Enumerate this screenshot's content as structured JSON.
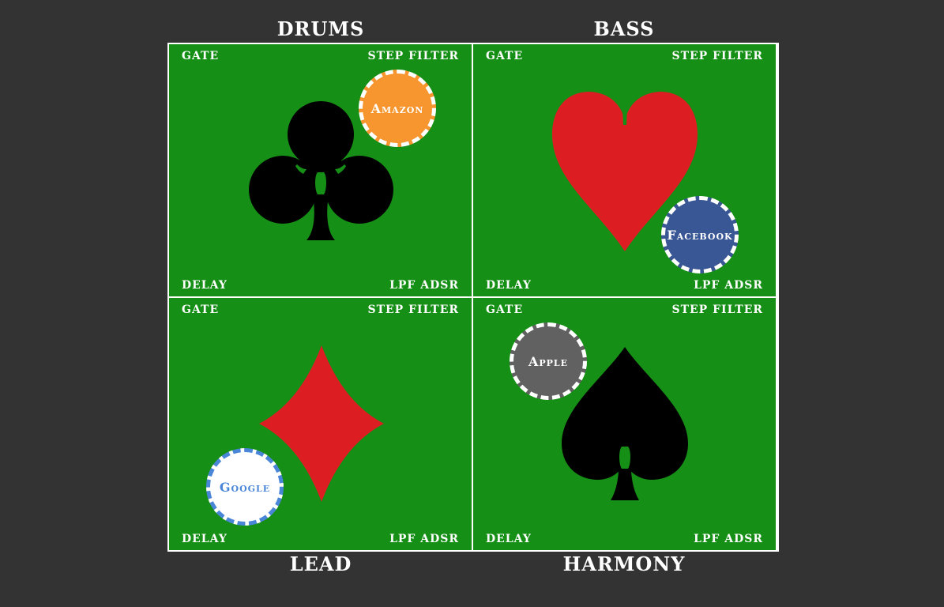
{
  "tracks": {
    "drums": "DRUMS",
    "bass": "BASS",
    "lead": "LEAD",
    "harmony": "HARMONY"
  },
  "quadrants": [
    {
      "track": "drums",
      "suit": "club-icon",
      "suit_color": "#000000",
      "chip": {
        "label": "Amazon",
        "color": "#f7962e"
      },
      "labels": {
        "top_left": "GATE",
        "top_right": "STEP FILTER",
        "bottom_left": "DELAY",
        "bottom_right": "LPF ADSR"
      }
    },
    {
      "track": "bass",
      "suit": "heart-icon",
      "suit_color": "#dc1e22",
      "chip": {
        "label": "Facebook",
        "color": "#3a5795"
      },
      "labels": {
        "top_left": "GATE",
        "top_right": "STEP FILTER",
        "bottom_left": "DELAY",
        "bottom_right": "LPF ADSR"
      }
    },
    {
      "track": "lead",
      "suit": "diamond-icon",
      "suit_color": "#dc1e22",
      "chip": {
        "label": "Google",
        "color": "#ffffff"
      },
      "labels": {
        "top_left": "GATE",
        "top_right": "STEP FILTER",
        "bottom_left": "DELAY",
        "bottom_right": "LPF ADSR"
      }
    },
    {
      "track": "harmony",
      "suit": "spade-icon",
      "suit_color": "#000000",
      "chip": {
        "label": "Apple",
        "color": "#616161"
      },
      "labels": {
        "top_left": "GATE",
        "top_right": "STEP FILTER",
        "bottom_left": "DELAY",
        "bottom_right": "LPF ADSR"
      }
    }
  ],
  "colors": {
    "background": "#333333",
    "felt": "#168f16",
    "divider": "#ffffff"
  }
}
